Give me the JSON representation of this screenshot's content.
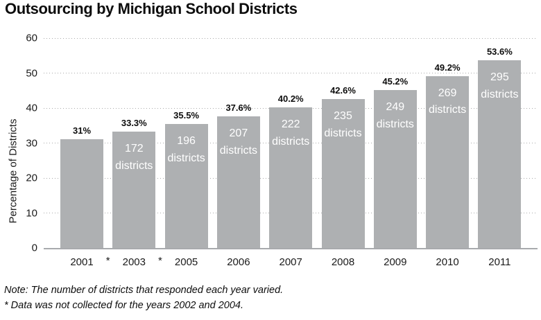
{
  "chart_data": {
    "type": "bar",
    "title": "Outsourcing by Michigan School Districts",
    "ylabel": "Percentage of Districts",
    "xlabel": "",
    "ylim": [
      0,
      60
    ],
    "yticks": [
      0,
      10,
      20,
      30,
      40,
      50,
      60
    ],
    "grid": "horizontal-dotted",
    "legend": "none",
    "bar_color": "#aeb0b2",
    "inner_label_color": "#ffffff",
    "categories": [
      "2001",
      "2003",
      "2005",
      "2006",
      "2007",
      "2008",
      "2009",
      "2010",
      "2011"
    ],
    "values": [
      31,
      33.3,
      35.5,
      37.6,
      40.2,
      42.6,
      45.2,
      49.2,
      53.6
    ],
    "bar_value_labels": [
      "31%",
      "33.3%",
      "35.5%",
      "37.6%",
      "40.2%",
      "42.6%",
      "45.2%",
      "49.2%",
      "53.6%"
    ],
    "district_counts": [
      null,
      172,
      196,
      207,
      222,
      235,
      249,
      269,
      295
    ],
    "inner_label_word": "districts",
    "missing_data_markers": [
      {
        "symbol": "*",
        "after_category": "2001"
      },
      {
        "symbol": "*",
        "after_category": "2003"
      }
    ]
  },
  "notes": {
    "line1": "Note: The number of districts that responded each year varied.",
    "line2": "* Data was not collected for the years 2002 and 2004."
  }
}
